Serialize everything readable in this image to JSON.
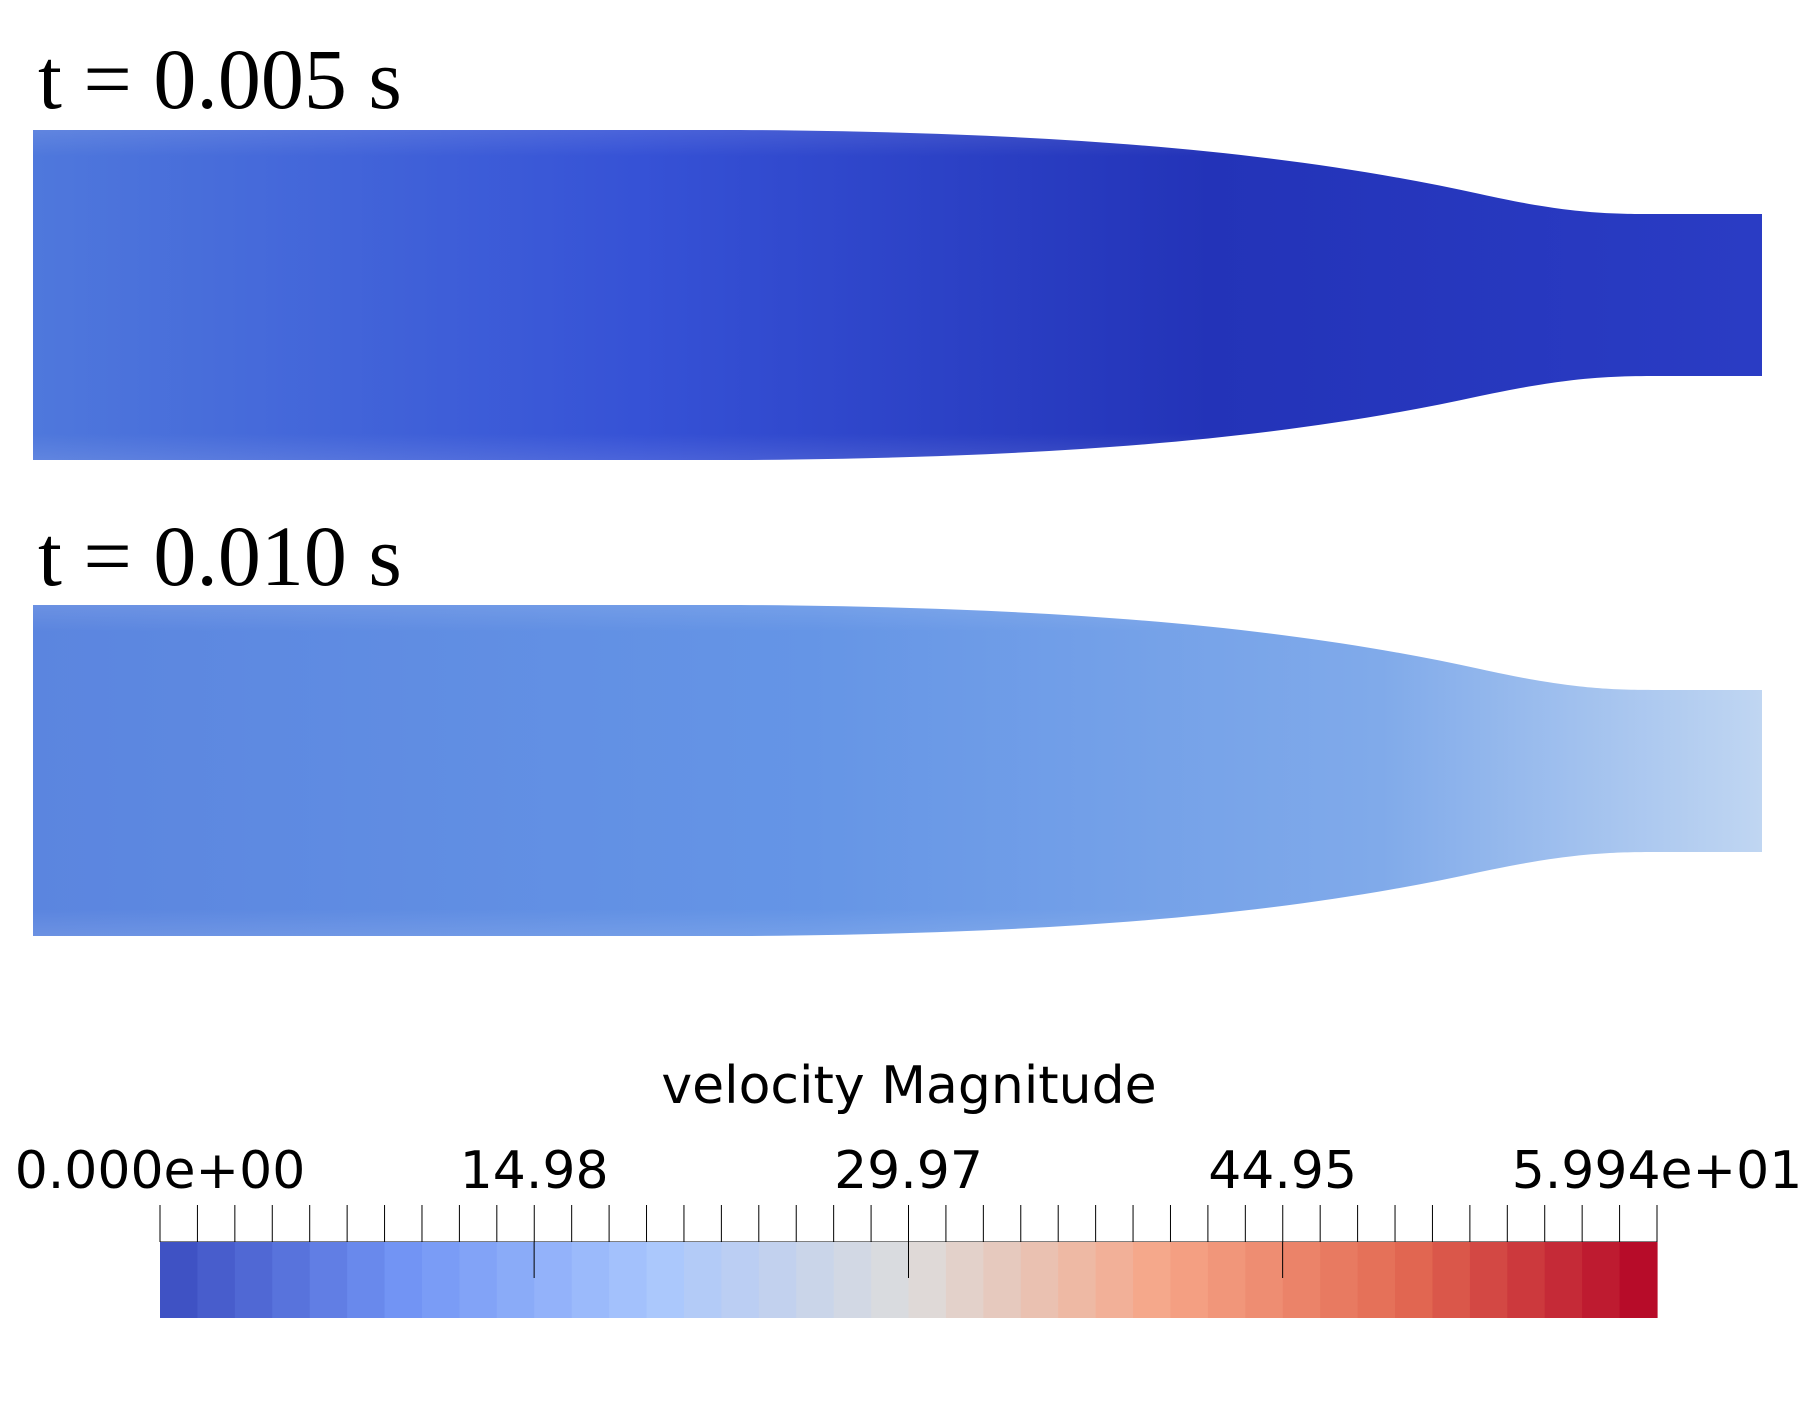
{
  "panels": [
    {
      "time_label": "t = 0.005 s",
      "field_colors": {
        "inlet": "#4f78dc",
        "mid": "#3652d6",
        "throat": "#2333b8",
        "outlet": "#2a3cc4"
      }
    },
    {
      "time_label": "t = 0.010 s",
      "field_colors": {
        "inlet": "#5b85df",
        "mid": "#6595e6",
        "throat": "#80aaea",
        "outlet": "#c0d6f2"
      }
    }
  ],
  "colorbar": {
    "title": "velocity Magnitude",
    "min": 0,
    "max": 59.94,
    "tick_labels": [
      "0.000e+00",
      "14.98",
      "29.97",
      "44.95",
      "5.994e+01"
    ],
    "tick_values": [
      0,
      14.98,
      29.97,
      44.95,
      59.94
    ],
    "colormap": [
      "#3b4cc0",
      "#7396f5",
      "#aac7fd",
      "#dddddd",
      "#f6a789",
      "#e26952",
      "#b40426"
    ],
    "bands": 40
  }
}
